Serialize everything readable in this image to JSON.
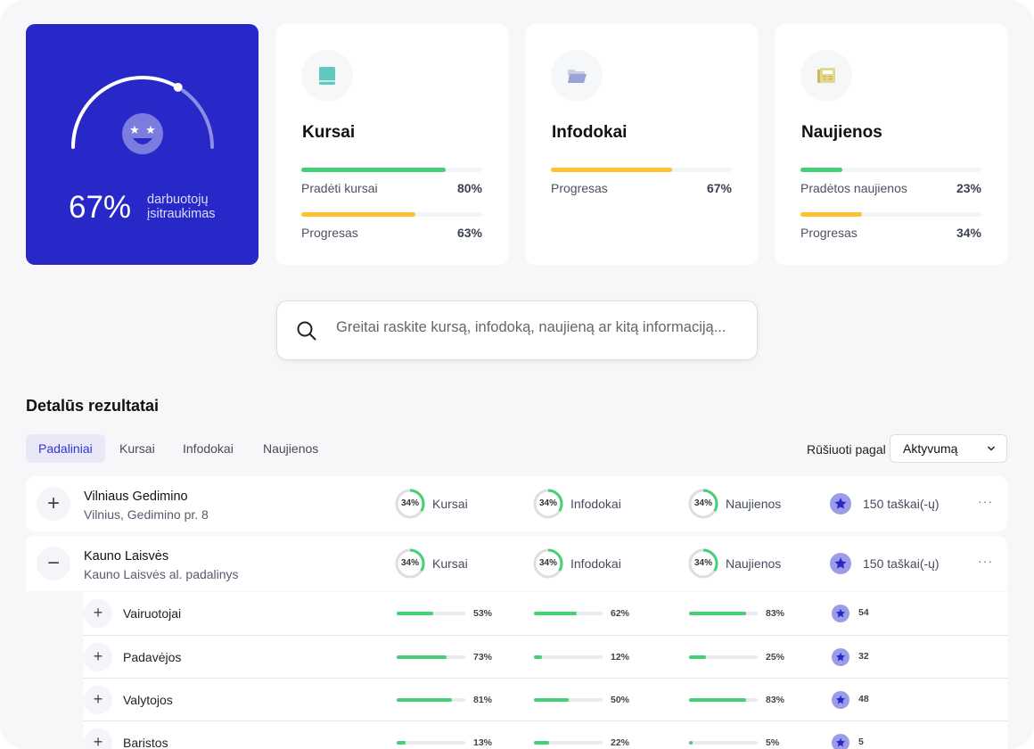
{
  "hero": {
    "value": "67%",
    "progress": 0.67,
    "label_line1": "darbuotojų",
    "label_line2": "įsitraukimas",
    "icon": "star-eyes-smile-icon",
    "color": "#2828c8"
  },
  "cards": [
    {
      "title": "Kursai",
      "icon": "book-icon",
      "metrics": [
        {
          "label": "Pradėti kursai",
          "value": "80%",
          "percent": 80,
          "color": "#45cf77"
        },
        {
          "label": "Progresas",
          "value": "63%",
          "percent": 63,
          "color": "#fdc233"
        }
      ]
    },
    {
      "title": "Infodokai",
      "icon": "folder-icon",
      "metrics": [
        {
          "label": "Progresas",
          "value": "67%",
          "percent": 67,
          "color": "#fdc233"
        }
      ]
    },
    {
      "title": "Naujienos",
      "icon": "newspaper-icon",
      "metrics": [
        {
          "label": "Pradėtos naujienos",
          "value": "23%",
          "percent": 23,
          "color": "#45cf77"
        },
        {
          "label": "Progresas",
          "value": "34%",
          "percent": 34,
          "color": "#fdc233"
        }
      ]
    }
  ],
  "search": {
    "placeholder": "Greitai raskite kursą, infodoką, naujieną ar kitą informaciją..."
  },
  "details": {
    "title": "Detalūs rezultatai",
    "tabs": [
      {
        "label": "Padaliniai",
        "active": true
      },
      {
        "label": "Kursai"
      },
      {
        "label": "Infodokai"
      },
      {
        "label": "Naujienos"
      }
    ],
    "sort_label": "Rūšiuoti pagal",
    "sort_value": "Aktyvumą",
    "rows": [
      {
        "name": "Vilniaus Gedimino",
        "subtitle": "Vilnius, Gedimino pr. 8",
        "expanded": false,
        "toggle": "+",
        "stats": [
          {
            "value": "34%",
            "percent": 34,
            "label": "Kursai"
          },
          {
            "value": "34%",
            "percent": 34,
            "label": "Infodokai"
          },
          {
            "value": "34%",
            "percent": 34,
            "label": "Naujienos"
          }
        ],
        "points": "150 taškai(-ų)",
        "more": "···"
      },
      {
        "name": "Kauno Laisvės",
        "subtitle": "Kauno Laisvės al. padalinys",
        "expanded": true,
        "toggle": "−",
        "stats": [
          {
            "value": "34%",
            "percent": 34,
            "label": "Kursai"
          },
          {
            "value": "34%",
            "percent": 34,
            "label": "Infodokai"
          },
          {
            "value": "34%",
            "percent": 34,
            "label": "Naujienos"
          }
        ],
        "points": "150 taškai(-ų)",
        "more": "···",
        "children": [
          {
            "name": "Vairuotojai",
            "toggle": "+",
            "values": [
              {
                "v": "53%",
                "p": 53
              },
              {
                "v": "62%",
                "p": 62
              },
              {
                "v": "83%",
                "p": 83
              }
            ],
            "points": "54"
          },
          {
            "name": "Padavėjos",
            "toggle": "+",
            "values": [
              {
                "v": "73%",
                "p": 73
              },
              {
                "v": "12%",
                "p": 12
              },
              {
                "v": "25%",
                "p": 25
              }
            ],
            "points": "32"
          },
          {
            "name": "Valytojos",
            "toggle": "+",
            "values": [
              {
                "v": "81%",
                "p": 81
              },
              {
                "v": "50%",
                "p": 50
              },
              {
                "v": "83%",
                "p": 83
              }
            ],
            "points": "48"
          },
          {
            "name": "Baristos",
            "toggle": "+",
            "values": [
              {
                "v": "13%",
                "p": 13
              },
              {
                "v": "22%",
                "p": 22
              },
              {
                "v": "5%",
                "p": 5
              }
            ],
            "points": "5"
          }
        ]
      }
    ]
  }
}
